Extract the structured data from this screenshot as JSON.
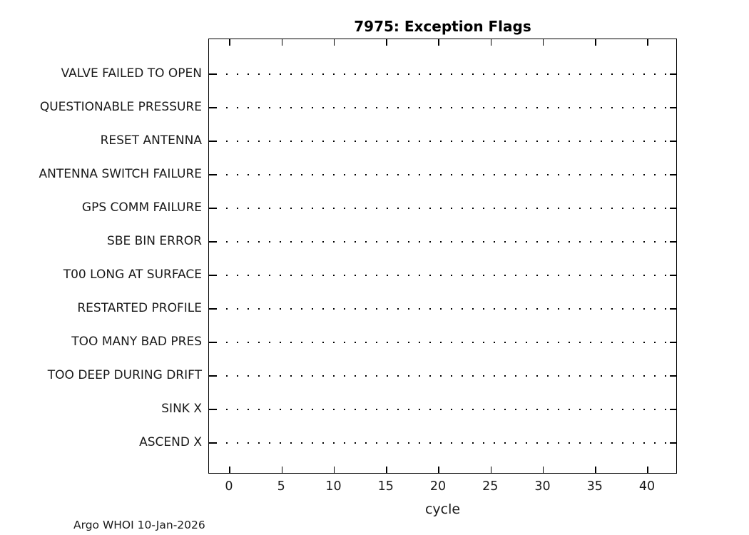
{
  "figure": {
    "title": "7975: Exception Flags",
    "xlabel": "cycle",
    "footer": "Argo WHOI 10-Jan-2026"
  },
  "chart_data": {
    "type": "scatter",
    "title": "7975: Exception Flags",
    "xlabel": "cycle",
    "ylabel": "",
    "categories": [
      "VALVE FAILED TO OPEN",
      "QUESTIONABLE PRESSURE",
      "RESET ANTENNA",
      "ANTENNA SWITCH FAILURE",
      "GPS COMM FAILURE",
      "SBE BIN ERROR",
      "T00 LONG AT SURFACE",
      "RESTARTED PROFILE",
      "TOO MANY BAD PRES",
      "TOO DEEP DURING DRIFT",
      "SINK X",
      "ASCEND X"
    ],
    "x_ticks": [
      0,
      5,
      10,
      15,
      20,
      25,
      30,
      35,
      40
    ],
    "xlim": [
      -2,
      43
    ],
    "points": [],
    "grid": "one horizontal dotted gridline per category, no data markers plotted",
    "legend_position": "none",
    "annotation": "Argo WHOI 10-Jan-2026",
    "colors": {
      "axis": "#000000",
      "grid_dots": "#000000",
      "text": "#1a1a1a",
      "background": "#ffffff"
    }
  }
}
